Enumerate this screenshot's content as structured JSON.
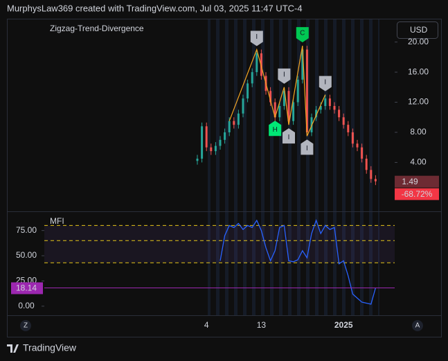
{
  "header": "MurphysLaw369 created with TradingView.com, Jul 03, 2025 11:47 UTC-4",
  "footer": "TradingView",
  "currency": "USD",
  "corner_left": "Z",
  "corner_right": "A",
  "chart_data": [
    {
      "type": "candlestick",
      "title": "Zigzag-Trend-Divergence",
      "categories": [
        null,
        null,
        "4",
        null,
        null,
        null,
        null,
        null,
        null,
        null,
        null,
        null,
        null,
        null,
        "13",
        null,
        null,
        null,
        null,
        null,
        null,
        null,
        null,
        null,
        null,
        null,
        null,
        null,
        null,
        null,
        null,
        null,
        "2025",
        null,
        null,
        null,
        null,
        null,
        null,
        null
      ],
      "open": [
        4.2,
        4.5,
        8.8,
        6.0,
        5.5,
        6.2,
        7.0,
        8.0,
        9.5,
        9.0,
        10.5,
        12.5,
        14.5,
        16.0,
        18.5,
        15.5,
        13.5,
        12.0,
        10.0,
        11.5,
        13.5,
        9.5,
        12.0,
        15.0,
        19.0,
        8.0,
        10.0,
        11.0,
        11.5,
        12.5,
        11.5,
        11.0,
        10.0,
        9.0,
        8.0,
        6.5,
        6.0,
        4.5,
        3.0,
        1.8
      ],
      "high": [
        5.0,
        9.3,
        9.3,
        6.5,
        6.7,
        7.5,
        8.5,
        10.0,
        10.0,
        11.0,
        13.0,
        15.0,
        16.5,
        19.0,
        19.0,
        16.0,
        14.0,
        12.5,
        12.0,
        14.0,
        14.0,
        12.5,
        15.5,
        19.5,
        19.5,
        10.5,
        11.5,
        12.0,
        13.0,
        13.0,
        12.0,
        11.5,
        10.5,
        9.5,
        8.5,
        7.0,
        6.5,
        5.0,
        3.5,
        2.3
      ],
      "low": [
        3.7,
        4.0,
        5.5,
        5.0,
        5.0,
        5.7,
        6.5,
        7.5,
        8.5,
        8.5,
        10.0,
        12.0,
        14.0,
        15.5,
        15.0,
        13.0,
        11.5,
        9.5,
        9.5,
        11.0,
        9.0,
        9.0,
        11.5,
        14.5,
        7.5,
        7.5,
        9.5,
        10.5,
        11.0,
        11.0,
        10.5,
        9.5,
        8.5,
        7.5,
        6.0,
        5.5,
        4.0,
        2.5,
        1.3,
        0.99
      ],
      "close": [
        4.5,
        8.8,
        6.0,
        5.5,
        6.2,
        7.0,
        8.0,
        9.5,
        9.0,
        10.5,
        12.5,
        14.5,
        16.0,
        18.5,
        15.5,
        13.5,
        12.0,
        10.0,
        11.5,
        13.5,
        9.5,
        12.0,
        15.0,
        19.0,
        8.0,
        10.0,
        11.0,
        11.5,
        12.5,
        11.5,
        11.0,
        10.0,
        9.0,
        8.0,
        6.5,
        6.0,
        4.5,
        3.0,
        1.8,
        1.49
      ],
      "up_color": "#26a69a",
      "down_color": "#ef5350",
      "change_label": "-68.72%",
      "zigzag": {
        "color": "#f5a623",
        "points": [
          {
            "index": 7,
            "value": 9.5
          },
          {
            "index": 13,
            "value": 19.0,
            "label": "I",
            "color": "#b2b5be"
          },
          {
            "index": 17,
            "value": 10.0,
            "label": "H",
            "color": "#00e676"
          },
          {
            "index": 19,
            "value": 14.0,
            "label": "I",
            "color": "#b2b5be"
          },
          {
            "index": 20,
            "value": 9.0,
            "label": "I",
            "color": "#b2b5be"
          },
          {
            "index": 23,
            "value": 19.5,
            "label": "C",
            "color": "#00c853"
          },
          {
            "index": 24,
            "value": 7.5,
            "label": "I",
            "color": "#b2b5be"
          },
          {
            "index": 28,
            "value": 13.0,
            "label": "I",
            "color": "#b2b5be"
          }
        ]
      },
      "ylim": [
        -2.5,
        23.1
      ],
      "yticks": [
        {
          "value": 4,
          "label": "4.00"
        },
        {
          "value": 8,
          "label": "8.00"
        },
        {
          "value": 12,
          "label": "12.00"
        },
        {
          "value": 16,
          "label": "16.00"
        },
        {
          "value": 20,
          "label": "20.00"
        }
      ],
      "grid": false
    },
    {
      "type": "line",
      "title": "MFI",
      "color": "#2962ff",
      "values": [
        null,
        null,
        null,
        null,
        null,
        45,
        70,
        80,
        78,
        82,
        76,
        80,
        78,
        85,
        75,
        58,
        45,
        55,
        78,
        80,
        45,
        44,
        46,
        55,
        48,
        72,
        85,
        72,
        80,
        76,
        78,
        42,
        45,
        30,
        12,
        8,
        4,
        3,
        2,
        18.14
      ],
      "bands": [
        80,
        65,
        43
      ],
      "band_color": "#e5c518",
      "ylim": [
        -9,
        94
      ],
      "yticks": [
        {
          "value": 0,
          "label": "0.00"
        },
        {
          "value": 25,
          "label": "25.00"
        },
        {
          "value": 50,
          "label": "50.00"
        },
        {
          "value": 75,
          "label": "75.00"
        }
      ],
      "last_color": "#9c27b0"
    }
  ]
}
